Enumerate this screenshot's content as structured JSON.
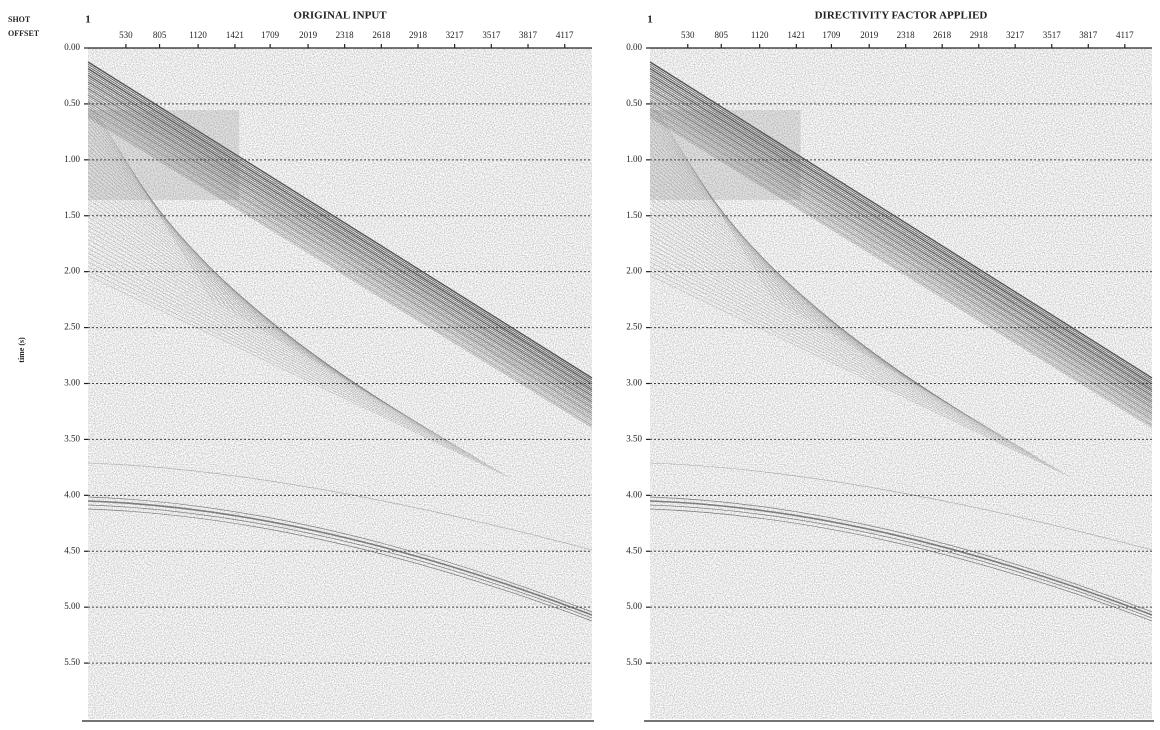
{
  "chart_data": [
    {
      "type": "seismic",
      "title": "ORIGINAL INPUT",
      "header_labels": [
        "SHOT",
        "OFFSET"
      ],
      "shot": 1,
      "ylabel": "time (s)",
      "xlim": [
        220,
        4340
      ],
      "xticks": [
        530,
        805,
        1120,
        1421,
        1709,
        2019,
        2318,
        2618,
        2918,
        3217,
        3517,
        3817,
        4117
      ],
      "ylim": [
        0,
        6.0
      ],
      "yticks": [
        {
          "value": 0,
          "label": "0.00"
        },
        {
          "value": 0.5,
          "label": "0.50"
        },
        {
          "value": 1.0,
          "label": "1.00"
        },
        {
          "value": 1.5,
          "label": "1.50"
        },
        {
          "value": 2.0,
          "label": "2.00"
        },
        {
          "value": 2.5,
          "label": "2.50"
        },
        {
          "value": 3.0,
          "label": "3.00"
        },
        {
          "value": 3.5,
          "label": "3.50"
        },
        {
          "value": 4.0,
          "label": "4.00"
        },
        {
          "value": 4.5,
          "label": "4.50"
        },
        {
          "value": 5.0,
          "label": "5.00"
        },
        {
          "value": 5.5,
          "label": "5.50"
        }
      ],
      "grid": true
    },
    {
      "type": "seismic",
      "title": "DIRECTIVITY FACTOR APPLIED",
      "shot": 1,
      "xlim": [
        220,
        4340
      ],
      "xticks": [
        530,
        805,
        1120,
        1421,
        1709,
        2019,
        2318,
        2618,
        2918,
        3217,
        3517,
        3817,
        4117
      ],
      "ylim": [
        0,
        6.0
      ],
      "yticks": [
        {
          "value": 0,
          "label": "0.00"
        },
        {
          "value": 0.5,
          "label": "0.50"
        },
        {
          "value": 1.0,
          "label": "1.00"
        },
        {
          "value": 1.5,
          "label": "1.50"
        },
        {
          "value": 2.0,
          "label": "2.00"
        },
        {
          "value": 2.5,
          "label": "2.50"
        },
        {
          "value": 3.0,
          "label": "3.00"
        },
        {
          "value": 3.5,
          "label": "3.50"
        },
        {
          "value": 4.0,
          "label": "4.00"
        },
        {
          "value": 4.5,
          "label": "4.50"
        },
        {
          "value": 5.0,
          "label": "5.00"
        },
        {
          "value": 5.5,
          "label": "5.50"
        }
      ],
      "grid": true
    }
  ]
}
